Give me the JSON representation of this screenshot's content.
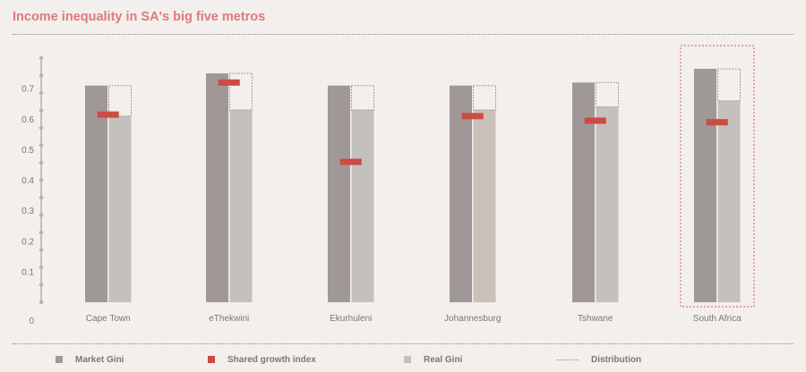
{
  "title": "Income inequality in SA's big five metros",
  "colors": {
    "title": "#e0787a",
    "market_gini": "#a09896",
    "real_gini": "#c4c0bd",
    "real_gini_alt": "#cbc1b9",
    "shared_growth": "#cc4b43",
    "distribution": "#8e8784",
    "highlight": "#e0787a",
    "axis": "#b9aeaa",
    "text": "#7d7674"
  },
  "legend": {
    "market_gini": "Market Gini",
    "shared_growth": "Shared growth index",
    "real_gini": "Real Gini",
    "distribution": "Distribution"
  },
  "chart_data": {
    "type": "bar",
    "title": "Income inequality in SA's big five metros",
    "categories": [
      "Cape Town",
      "eThekwini",
      "Ekurhuleni",
      "Johannesburg",
      "Tshwane",
      "South Africa"
    ],
    "series": [
      {
        "name": "Market Gini",
        "values": [
          0.71,
          0.75,
          0.71,
          0.71,
          0.72,
          0.765
        ]
      },
      {
        "name": "Real Gini",
        "values": [
          0.61,
          0.63,
          0.63,
          0.63,
          0.64,
          0.66
        ]
      },
      {
        "name": "Shared growth index",
        "values": [
          0.615,
          0.72,
          0.46,
          0.61,
          0.595,
          0.59
        ]
      },
      {
        "name": "Distribution",
        "values": [
          0.1,
          0.12,
          0.08,
          0.08,
          0.08,
          0.105
        ]
      }
    ],
    "highlighted_category": "South Africa",
    "y_ticks": [
      "0",
      "0.1",
      "0.2",
      "0.3",
      "0.4",
      "0.5",
      "0.6",
      "0.7"
    ],
    "ylim": [
      0,
      0.8
    ],
    "grid": false,
    "legend_position": "bottom"
  }
}
